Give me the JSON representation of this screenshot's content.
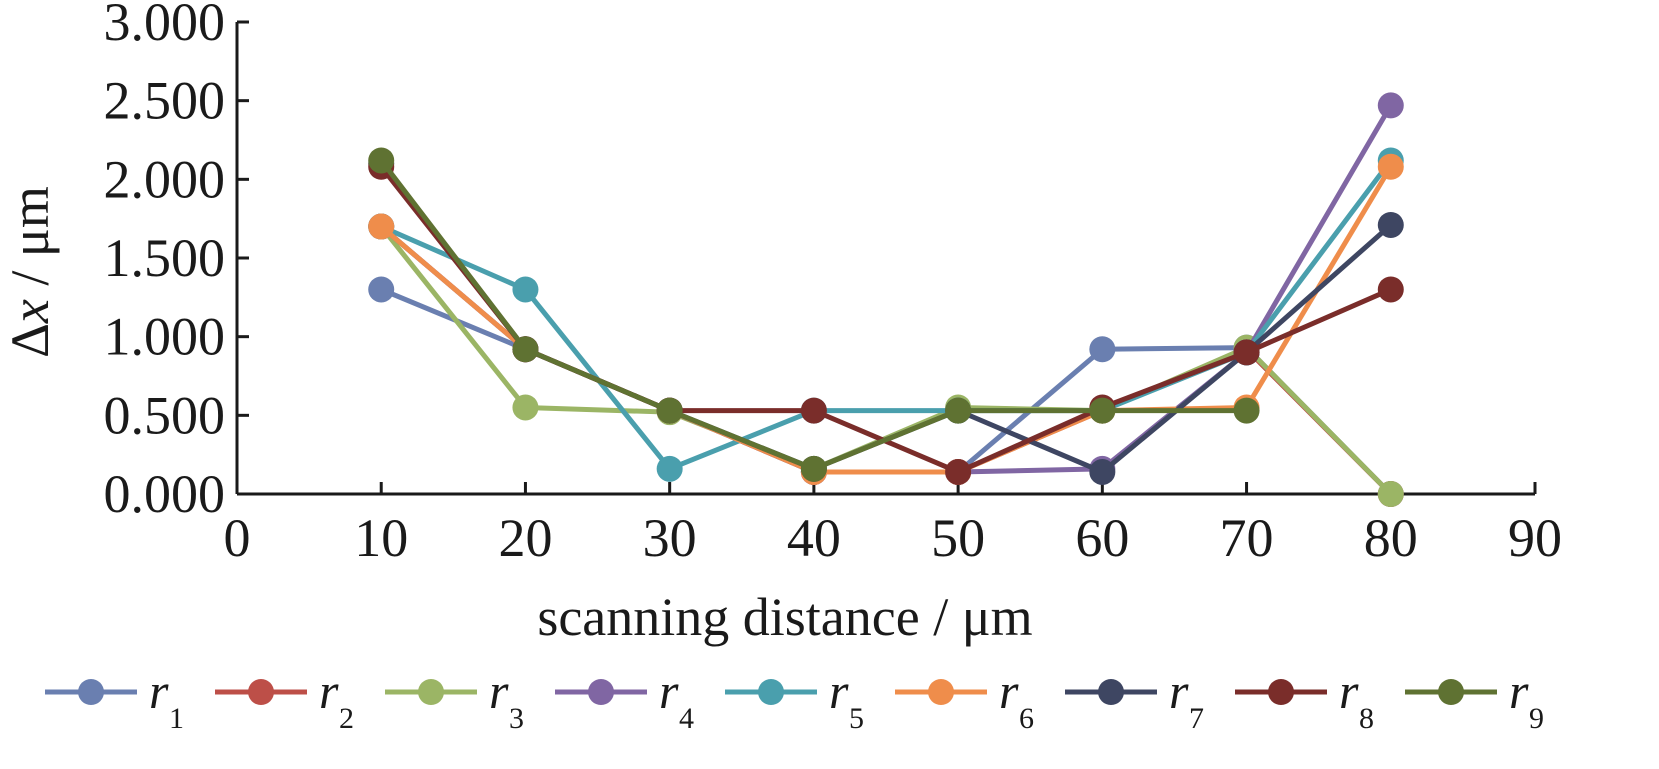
{
  "chart_data": {
    "type": "line",
    "title": "",
    "xlabel": "scanning distance / μm",
    "ylabel_symbol": "Δ",
    "ylabel_var": "x",
    "ylabel_unit": " / μm",
    "xlim": [
      0,
      90
    ],
    "ylim": [
      0,
      3
    ],
    "x_ticks": [
      0,
      10,
      20,
      30,
      40,
      50,
      60,
      70,
      80,
      90
    ],
    "x_tick_labels": [
      "0",
      "10",
      "20",
      "30",
      "40",
      "50",
      "60",
      "70",
      "80",
      "90"
    ],
    "y_ticks": [
      0,
      0.5,
      1,
      1.5,
      2,
      2.5,
      3
    ],
    "y_tick_labels": [
      "0.000",
      "0.500",
      "1.000",
      "1.500",
      "2.000",
      "2.500",
      "3.000"
    ],
    "grid": false,
    "legend_position": "bottom",
    "x": [
      10,
      20,
      30,
      40,
      50,
      60,
      70,
      80
    ],
    "series": [
      {
        "name": "r",
        "subscript": "1",
        "color": "#6a7fb0",
        "values": [
          1.3,
          0.92,
          0.53,
          0.14,
          0.14,
          0.92,
          0.93,
          0.0
        ]
      },
      {
        "name": "r",
        "subscript": "2",
        "color": "#bd4f48",
        "values": [
          1.7,
          0.92,
          0.53,
          0.14,
          0.14,
          0.53,
          0.92,
          0.0
        ]
      },
      {
        "name": "r",
        "subscript": "3",
        "color": "#9bb565",
        "values": [
          1.7,
          0.55,
          0.52,
          0.16,
          0.55,
          0.53,
          0.93,
          0.0
        ]
      },
      {
        "name": "r",
        "subscript": "4",
        "color": "#8066a3",
        "values": [
          1.7,
          0.92,
          0.53,
          0.14,
          0.14,
          0.16,
          0.9,
          2.47
        ]
      },
      {
        "name": "r",
        "subscript": "5",
        "color": "#4a9fad",
        "values": [
          1.7,
          1.3,
          0.16,
          0.53,
          0.53,
          0.53,
          0.9,
          2.12
        ]
      },
      {
        "name": "r",
        "subscript": "6",
        "color": "#ef8d4b",
        "values": [
          1.7,
          0.92,
          0.53,
          0.14,
          0.14,
          0.53,
          0.55,
          2.08
        ]
      },
      {
        "name": "r",
        "subscript": "7",
        "color": "#3e4662",
        "values": [
          2.1,
          0.92,
          0.53,
          0.16,
          0.53,
          0.14,
          0.9,
          1.71
        ]
      },
      {
        "name": "r",
        "subscript": "8",
        "color": "#7a2d2a",
        "values": [
          2.08,
          0.92,
          0.53,
          0.53,
          0.14,
          0.55,
          0.9,
          1.3
        ]
      },
      {
        "name": "r",
        "subscript": "9",
        "color": "#5f7232",
        "values": [
          2.12,
          0.92,
          0.53,
          0.16,
          0.53,
          0.53,
          0.53,
          null
        ]
      }
    ]
  }
}
